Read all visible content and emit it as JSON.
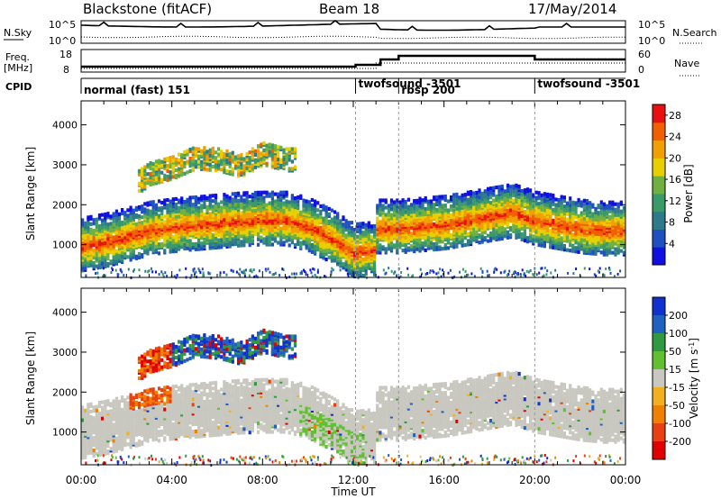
{
  "header": {
    "title": "Blackstone (fitACF)",
    "beam": "Beam 18",
    "date": "17/May/2014"
  },
  "noise_panel": {
    "left_label": "N.Sky",
    "left_ticks": [
      "10^5",
      "10^0"
    ],
    "right_label": "N.Search",
    "right_ticks": [
      "10^5",
      "10^0"
    ]
  },
  "freq_panel": {
    "left_label_1": "Freq.",
    "left_label_2": "[MHz]",
    "left_ticks": [
      "18",
      "8"
    ],
    "right_label": "Nave",
    "right_ticks": [
      "60",
      "0"
    ]
  },
  "cpid": {
    "label": "CPID",
    "segments": [
      {
        "start_hour": 0,
        "end_hour": 12.1,
        "text": "normal (fast) 151"
      },
      {
        "start_hour": 12.1,
        "end_hour": 14.0,
        "text": "twofsound -3501"
      },
      {
        "start_hour": 14.0,
        "end_hour": 20.0,
        "text": "rbsp 200"
      },
      {
        "start_hour": 20.0,
        "end_hour": 24.0,
        "text": "twofsound -3501"
      }
    ]
  },
  "colors": {
    "power_scale": [
      "#1010e0",
      "#1e50c0",
      "#2e7a8a",
      "#3a9a6a",
      "#70b040",
      "#e8d000",
      "#f0a000",
      "#f06000",
      "#e81010"
    ],
    "velocity_scale": [
      "#1030d0",
      "#2060c0",
      "#2f9a40",
      "#60c030",
      "#c8c8c0",
      "#f0b020",
      "#f08000",
      "#e84010",
      "#e00000"
    ]
  },
  "chart_data": [
    {
      "type": "heatmap",
      "name": "power",
      "ylabel": "Slant Range [km]",
      "xlabel": "Time UT",
      "x_ticks": [
        "00:00",
        "04:00",
        "08:00",
        "12:00",
        "16:00",
        "20:00",
        "00:00"
      ],
      "x_range_hours": [
        0,
        24
      ],
      "y_ticks": [
        1000,
        2000,
        3000,
        4000
      ],
      "y_range_km": [
        180,
        4600
      ],
      "colorbar_label": "Power [dB]",
      "colorbar_ticks": [
        4,
        8,
        12,
        16,
        20,
        24,
        28
      ],
      "colorbar_range": [
        0,
        30
      ],
      "band_center_km": [
        [
          0,
          1000
        ],
        [
          1,
          1100
        ],
        [
          2,
          1250
        ],
        [
          3,
          1400
        ],
        [
          4,
          1480
        ],
        [
          5,
          1530
        ],
        [
          6,
          1580
        ],
        [
          7,
          1630
        ],
        [
          8,
          1650
        ],
        [
          9,
          1650
        ],
        [
          10,
          1500
        ],
        [
          11,
          1200
        ],
        [
          12,
          850
        ],
        [
          12.9,
          900
        ],
        [
          13,
          1450
        ],
        [
          14,
          1450
        ],
        [
          15,
          1500
        ],
        [
          16,
          1550
        ],
        [
          17,
          1650
        ],
        [
          18,
          1750
        ],
        [
          19,
          1850
        ],
        [
          20,
          1650
        ],
        [
          21,
          1550
        ],
        [
          22,
          1450
        ],
        [
          23,
          1400
        ],
        [
          24,
          1400
        ]
      ],
      "upper_echo_km": [
        [
          2.5,
          2600
        ],
        [
          3,
          2800
        ],
        [
          4,
          2950
        ],
        [
          5,
          3200
        ],
        [
          6,
          3150
        ],
        [
          7,
          3000
        ],
        [
          8,
          3300
        ],
        [
          9,
          3150
        ]
      ]
    },
    {
      "type": "heatmap",
      "name": "velocity",
      "ylabel": "Slant Range [km]",
      "xlabel": "Time UT",
      "x_ticks": [
        "00:00",
        "04:00",
        "08:00",
        "12:00",
        "16:00",
        "20:00",
        "00:00"
      ],
      "x_range_hours": [
        0,
        24
      ],
      "y_ticks": [
        1000,
        2000,
        3000,
        4000
      ],
      "y_range_km": [
        180,
        4600
      ],
      "colorbar_label": "Velocity [m s^-1]",
      "colorbar_ticks": [
        200,
        100,
        50,
        15,
        -15,
        -50,
        -100,
        -200
      ],
      "colorbar_range": [
        -250,
        250
      ]
    }
  ]
}
